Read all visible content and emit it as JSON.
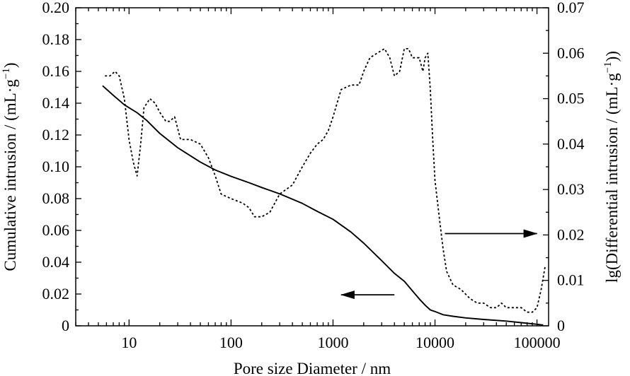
{
  "chart_data": {
    "type": "line",
    "title": "",
    "xlabel": "Pore size Diameter / nm",
    "ylabel_left_parts": [
      "Cumulative intrusion / (mL·g",
      "−1",
      ")"
    ],
    "ylabel_right_parts": [
      "lg(Differential intrusion / (mL·g",
      "−1",
      "))"
    ],
    "x_scale": "log",
    "xlim": [
      3,
      130000
    ],
    "x_ticks": [
      10,
      100,
      1000,
      10000,
      100000
    ],
    "x_tick_labels": [
      "10",
      "100",
      "1000",
      "10000",
      "100000"
    ],
    "ylim_left": [
      0,
      0.2
    ],
    "y_left_ticks": [
      0,
      0.02,
      0.04,
      0.06,
      0.08,
      0.1,
      0.12,
      0.14,
      0.16,
      0.18,
      0.2
    ],
    "y_left_tick_labels": [
      "0",
      "0.02",
      "0.04",
      "0.06",
      "0.08",
      "0.10",
      "0.12",
      "0.14",
      "0.16",
      "0.18",
      "0.20"
    ],
    "ylim_right": [
      0,
      0.07
    ],
    "y_right_ticks": [
      0,
      0.01,
      0.02,
      0.03,
      0.04,
      0.05,
      0.06,
      0.07
    ],
    "y_right_tick_labels": [
      "0",
      "0.01",
      "0.02",
      "0.03",
      "0.04",
      "0.05",
      "0.06",
      "0.07"
    ],
    "grid": false,
    "legend": "none",
    "series": [
      {
        "axis": "left",
        "style": "solid",
        "x": [
          5.5,
          7,
          9,
          12,
          15,
          20,
          30,
          50,
          70,
          100,
          150,
          200,
          300,
          500,
          700,
          1000,
          1500,
          2000,
          3000,
          4000,
          5000,
          6000,
          7000,
          8000,
          9000,
          10000,
          12000,
          15000,
          20000,
          30000,
          50000,
          70000,
          100000,
          115000
        ],
        "y": [
          0.151,
          0.145,
          0.139,
          0.134,
          0.129,
          0.121,
          0.112,
          0.103,
          0.098,
          0.094,
          0.09,
          0.087,
          0.083,
          0.077,
          0.072,
          0.067,
          0.059,
          0.052,
          0.041,
          0.033,
          0.028,
          0.022,
          0.017,
          0.013,
          0.01,
          0.009,
          0.007,
          0.006,
          0.005,
          0.004,
          0.003,
          0.002,
          0.001,
          0.0005
        ]
      },
      {
        "axis": "right",
        "style": "dotted",
        "x": [
          5.8,
          6.5,
          7.3,
          8,
          9,
          10,
          11,
          12,
          13,
          14,
          16,
          18,
          20,
          23,
          25,
          28,
          32,
          40,
          50,
          60,
          70,
          80,
          100,
          130,
          150,
          170,
          200,
          240,
          300,
          400,
          500,
          600,
          700,
          800,
          900,
          1000,
          1200,
          1500,
          1800,
          2000,
          2300,
          2700,
          3200,
          3600,
          4000,
          4500,
          5000,
          5500,
          6000,
          7000,
          7600,
          8000,
          8500,
          9000,
          9500,
          10000,
          11000,
          12000,
          13000,
          15000,
          18000,
          22000,
          26000,
          30000,
          35000,
          40000,
          45000,
          50000,
          60000,
          70000,
          80000,
          90000,
          100000,
          110000,
          120000
        ],
        "y": [
          0.055,
          0.055,
          0.056,
          0.055,
          0.05,
          0.041,
          0.036,
          0.033,
          0.04,
          0.048,
          0.05,
          0.049,
          0.047,
          0.045,
          0.045,
          0.046,
          0.041,
          0.041,
          0.04,
          0.037,
          0.033,
          0.029,
          0.028,
          0.027,
          0.026,
          0.024,
          0.024,
          0.025,
          0.029,
          0.031,
          0.035,
          0.038,
          0.04,
          0.041,
          0.043,
          0.046,
          0.052,
          0.053,
          0.053,
          0.056,
          0.059,
          0.06,
          0.061,
          0.059,
          0.055,
          0.056,
          0.061,
          0.061,
          0.059,
          0.059,
          0.056,
          0.059,
          0.06,
          0.052,
          0.041,
          0.032,
          0.024,
          0.017,
          0.012,
          0.009,
          0.008,
          0.006,
          0.005,
          0.005,
          0.004,
          0.004,
          0.005,
          0.004,
          0.004,
          0.004,
          0.003,
          0.003,
          0.004,
          0.008,
          0.013
        ]
      }
    ],
    "annotations": [
      {
        "type": "arrow",
        "direction": "left",
        "x_from": 4000,
        "x_to": 1200,
        "y_left": 0.0195,
        "target_axis": "left"
      },
      {
        "type": "arrow",
        "direction": "right",
        "x_from": 12500,
        "x_to": 100000,
        "y_right": 0.0203,
        "target_axis": "right"
      }
    ]
  }
}
